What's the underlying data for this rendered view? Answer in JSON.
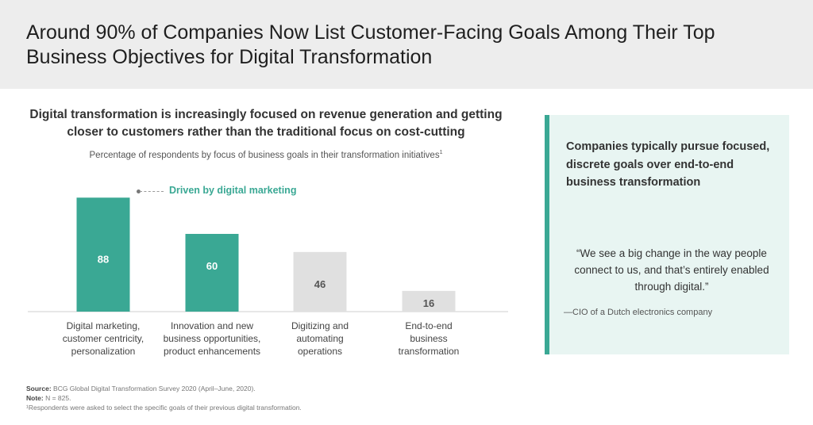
{
  "header": {
    "title": "Around 90% of Companies Now List Customer-Facing Goals Among Their Top Business Objectives for Digital Transformation"
  },
  "chart_data": {
    "type": "bar",
    "title": "Digital transformation is increasingly focused on revenue generation and getting closer to customers rather than the traditional focus on cost-cutting",
    "subtitle": "Percentage of respondents by focus of business goals in their transformation initiatives",
    "subtitle_footnote": "1",
    "categories": [
      "Digital marketing, customer centricity, personalization",
      "Innovation and new business opportunities, product enhancements",
      "Digitizing and automating operations",
      "End-to-end business transformation"
    ],
    "values": [
      88,
      60,
      46,
      16
    ],
    "category_lines": [
      [
        "Digital marketing,",
        "customer centricity,",
        "personalization"
      ],
      [
        "Innovation and new",
        "business opportunities,",
        "product enhancements"
      ],
      [
        "Digitizing and",
        "automating",
        "operations"
      ],
      [
        "End-to-end",
        "business",
        "transformation"
      ]
    ],
    "bar_colors": [
      "#3aa894",
      "#3aa894",
      "#e0e0e0",
      "#e0e0e0"
    ],
    "label_colors": [
      "#ffffff",
      "#ffffff",
      "#555555",
      "#555555"
    ],
    "ylim": [
      0,
      100
    ],
    "annotation": "Driven by digital marketing",
    "grid": false,
    "xlabel": "",
    "ylabel": ""
  },
  "sidepanel": {
    "heading": "Companies typically pursue focused, discrete goals over end-to-end business transformation",
    "quote": "“We see a big change in the way people connect to us, and that’s entirely enabled through digital.”",
    "attribution": "—CIO of a Dutch electronics company"
  },
  "footer": {
    "source_label": "Source:",
    "source_text": "BCG Global Digital Transformation Survey 2020 (April–June, 2020).",
    "note_label": "Note:",
    "note_text": "N = 825.",
    "footnote": "¹Respondents were asked to select the specific goals of their previous digital transformation."
  },
  "colors": {
    "accent": "#3aa894",
    "header_bg": "#ededed",
    "panel_bg": "#e8f5f2",
    "neutral_bar": "#e0e0e0"
  }
}
